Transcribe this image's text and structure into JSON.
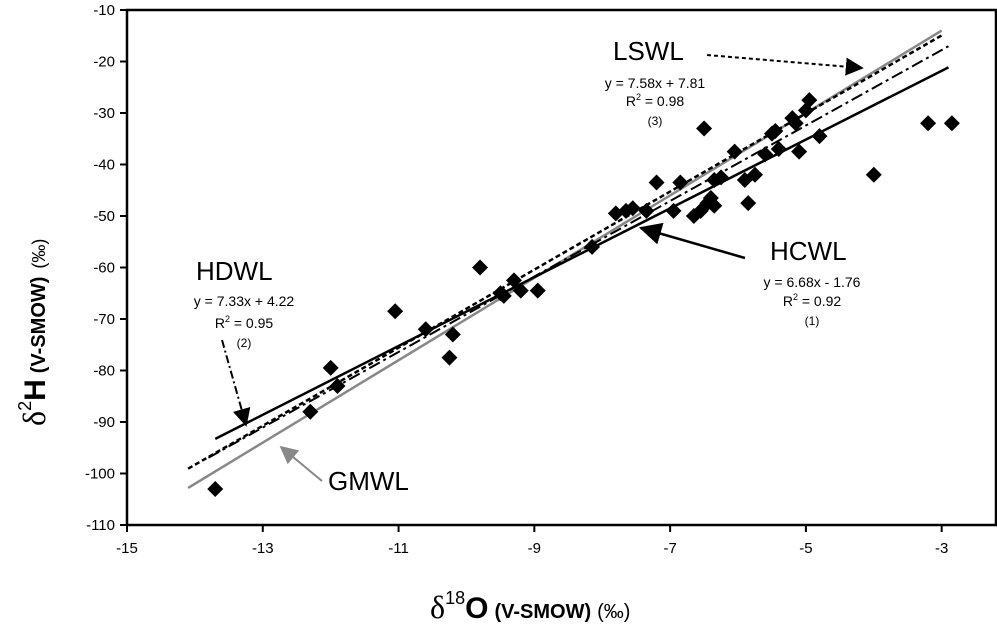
{
  "chart_data": {
    "type": "scatter",
    "x_axis": {
      "title_symbol": "δ",
      "title_sup": "18",
      "title_element": "O",
      "title_ref": "(V-SMOW)",
      "title_unit": "(‰)",
      "range": [
        -15,
        -2.2
      ],
      "tick_values": [
        -15,
        -13,
        -11,
        -9,
        -7,
        -5,
        -3
      ],
      "tick_labels": [
        "-15",
        "-13",
        "-11",
        "-9",
        "-7",
        "-5",
        "-3"
      ]
    },
    "y_axis": {
      "title_symbol": "δ",
      "title_sup": "2",
      "title_element": "H",
      "title_ref": "(V-SMOW)",
      "title_unit": "(‰)",
      "range": [
        -110,
        -10
      ],
      "tick_values": [
        -110,
        -100,
        -90,
        -80,
        -70,
        -60,
        -50,
        -40,
        -30,
        -20,
        -10
      ],
      "tick_labels": [
        "-110",
        "-100",
        "-90",
        "-80",
        "-70",
        "-60",
        "-50",
        "-40",
        "-30",
        "-20",
        "-10"
      ]
    },
    "grid": false,
    "points": [
      [
        -13.7,
        -103
      ],
      [
        -12.3,
        -88
      ],
      [
        -12.0,
        -79.5
      ],
      [
        -11.9,
        -83
      ],
      [
        -11.05,
        -68.5
      ],
      [
        -10.6,
        -72
      ],
      [
        -10.25,
        -77.5
      ],
      [
        -10.2,
        -73
      ],
      [
        -9.8,
        -60
      ],
      [
        -9.5,
        -65
      ],
      [
        -9.45,
        -65.5
      ],
      [
        -9.3,
        -62.5
      ],
      [
        -9.2,
        -64.5
      ],
      [
        -8.95,
        -64.5
      ],
      [
        -8.15,
        -56
      ],
      [
        -7.8,
        -49.5
      ],
      [
        -7.65,
        -49
      ],
      [
        -7.55,
        -48.5
      ],
      [
        -7.35,
        -49
      ],
      [
        -7.2,
        -43.5
      ],
      [
        -6.95,
        -49
      ],
      [
        -6.85,
        -43.5
      ],
      [
        -6.65,
        -50
      ],
      [
        -6.55,
        -49
      ],
      [
        -6.5,
        -33
      ],
      [
        -6.45,
        -47.5
      ],
      [
        -6.4,
        -46.5
      ],
      [
        -6.35,
        -48
      ],
      [
        -6.35,
        -43
      ],
      [
        -6.25,
        -42.5
      ],
      [
        -6.05,
        -37.5
      ],
      [
        -5.9,
        -43
      ],
      [
        -5.85,
        -47.5
      ],
      [
        -5.75,
        -42
      ],
      [
        -5.6,
        -38
      ],
      [
        -5.5,
        -34
      ],
      [
        -5.45,
        -33.5
      ],
      [
        -5.4,
        -37
      ],
      [
        -5.2,
        -31
      ],
      [
        -5.15,
        -32
      ],
      [
        -5.1,
        -37.5
      ],
      [
        -5.0,
        -29.5
      ],
      [
        -4.95,
        -27.5
      ],
      [
        -4.8,
        -34.5
      ],
      [
        -4.0,
        -42
      ],
      [
        -3.2,
        -32
      ],
      [
        -2.85,
        -32
      ]
    ],
    "lines": [
      {
        "id": "gmwl",
        "name": "GMWL",
        "x_range": [
          -14.1,
          -3.0
        ],
        "slope": 8.0,
        "intercept": 10.0,
        "style": "solid",
        "color": "#888888"
      },
      {
        "id": "hdwl",
        "name": "HDWL",
        "equation": "y = 7.33x + 4.22",
        "r2_label": "R",
        "r2_sup": "2",
        "r2_value": " = 0.95",
        "ref": "(2)",
        "x_range": [
          -13.8,
          -2.9
        ],
        "slope": 7.33,
        "intercept": 4.22,
        "style": "dashdot",
        "color": "#000000"
      },
      {
        "id": "lswl",
        "name": "LSWL",
        "equation": "y = 7.58x + 7.81",
        "r2_label": "R",
        "r2_sup": "2",
        "r2_value": " = 0.98",
        "ref": "(3)",
        "x_range": [
          -14.1,
          -3.0
        ],
        "slope": 7.58,
        "intercept": 7.81,
        "style": "dashed",
        "color": "#000000"
      },
      {
        "id": "hcwl",
        "name": "HCWL",
        "equation": "y = 6.68x - 1.76",
        "r2_label": "R",
        "r2_sup": "2",
        "r2_value": " = 0.92",
        "ref": "(1)",
        "x_range": [
          -13.7,
          -2.9
        ],
        "slope": 6.68,
        "intercept": -1.76,
        "style": "solid",
        "color": "#000000"
      }
    ]
  }
}
